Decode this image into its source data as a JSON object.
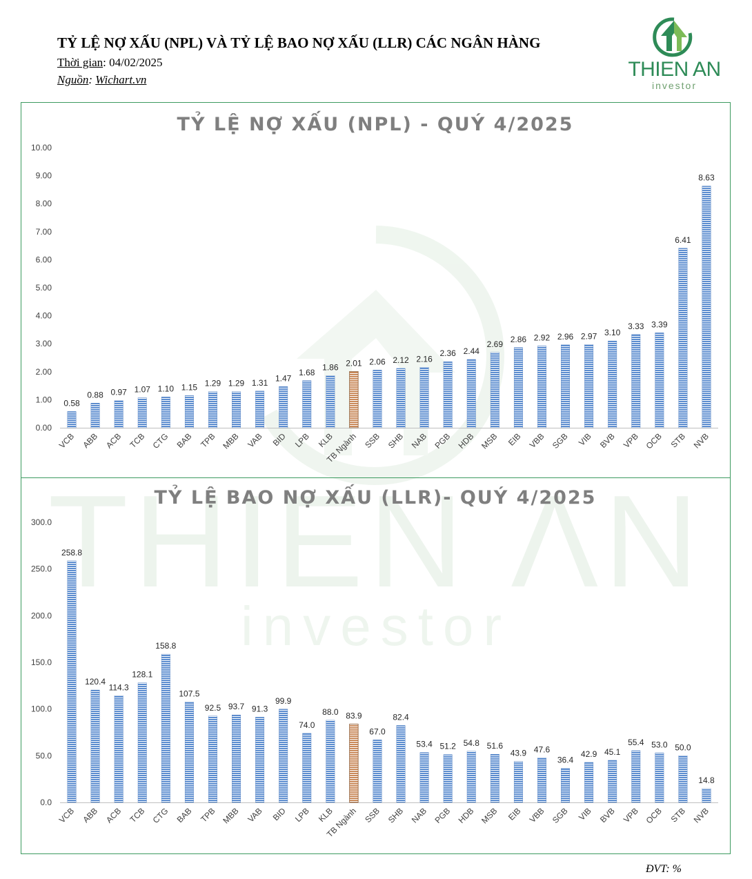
{
  "header": {
    "title": "TỶ LỆ NỢ XẤU (NPL) VÀ TỶ LỆ BAO NỢ XẤU (LLR) CÁC NGÂN HÀNG",
    "date_label": "Thời gian",
    "date_value": "04/02/2025",
    "source_label": "Nguồn",
    "source_value": "Wichart.vn"
  },
  "logo": {
    "name": "THIEN AN",
    "sub": "investor",
    "icon": "upward-arrow-circle-icon",
    "color": "#2e8b57"
  },
  "footer": {
    "unit": "ĐVT: %"
  },
  "colors": {
    "bar": "#5b8ccf",
    "highlight": "#c9895a",
    "border": "#3c9a5f",
    "watermark": "#e6f0e6"
  },
  "chart_data": [
    {
      "type": "bar",
      "title": "TỶ LỆ NỢ XẤU (NPL) - QUÝ 4/2025",
      "categories": [
        "VCB",
        "ABB",
        "ACB",
        "TCB",
        "CTG",
        "BAB",
        "TPB",
        "MBB",
        "VAB",
        "BID",
        "LPB",
        "KLB",
        "TB Ngành",
        "SSB",
        "SHB",
        "NAB",
        "PGB",
        "HDB",
        "MSB",
        "EIB",
        "VBB",
        "SGB",
        "VIB",
        "BVB",
        "VPB",
        "OCB",
        "STB",
        "NVB"
      ],
      "values": [
        0.58,
        0.88,
        0.97,
        1.07,
        1.1,
        1.15,
        1.29,
        1.29,
        1.31,
        1.47,
        1.68,
        1.86,
        2.01,
        2.06,
        2.12,
        2.16,
        2.36,
        2.44,
        2.69,
        2.86,
        2.92,
        2.96,
        2.97,
        3.1,
        3.33,
        3.39,
        6.41,
        8.63
      ],
      "labels": [
        "0.58",
        "0.88",
        "0.97",
        "1.07",
        "1.10",
        "1.15",
        "1.29",
        "1.29",
        "1.31",
        "1.47",
        "1.68",
        "1.86",
        "2.01",
        "2.06",
        "2.12",
        "2.16",
        "2.36",
        "2.44",
        "2.69",
        "2.86",
        "2.92",
        "2.96",
        "2.97",
        "3.10",
        "3.33",
        "3.39",
        "6.41",
        "8.63"
      ],
      "highlight": "TB Ngành",
      "ylim": [
        0,
        10
      ],
      "yticks": [
        "0.00",
        "1.00",
        "2.00",
        "3.00",
        "4.00",
        "5.00",
        "6.00",
        "7.00",
        "8.00",
        "9.00",
        "10.00"
      ],
      "grid": false
    },
    {
      "type": "bar",
      "title": "TỶ LỆ BAO NỢ XẤU (LLR)- QUÝ 4/2025",
      "categories": [
        "VCB",
        "ABB",
        "ACB",
        "TCB",
        "CTG",
        "BAB",
        "TPB",
        "MBB",
        "VAB",
        "BID",
        "LPB",
        "KLB",
        "TB Ngành",
        "SSB",
        "SHB",
        "NAB",
        "PGB",
        "HDB",
        "MSB",
        "EIB",
        "VBB",
        "SGB",
        "VIB",
        "BVB",
        "VPB",
        "OCB",
        "STB",
        "NVB"
      ],
      "values": [
        258.8,
        120.4,
        114.3,
        128.1,
        158.8,
        107.5,
        92.5,
        93.7,
        91.3,
        99.9,
        74.0,
        88.0,
        83.9,
        67.0,
        82.4,
        53.4,
        51.2,
        54.8,
        51.6,
        43.9,
        47.6,
        36.4,
        42.9,
        45.1,
        55.4,
        53.0,
        50.0,
        14.8
      ],
      "labels": [
        "258.8",
        "120.4",
        "114.3",
        "128.1",
        "158.8",
        "107.5",
        "92.5",
        "93.7",
        "91.3",
        "99.9",
        "74.0",
        "88.0",
        "83.9",
        "67.0",
        "82.4",
        "53.4",
        "51.2",
        "54.8",
        "51.6",
        "43.9",
        "47.6",
        "36.4",
        "42.9",
        "45.1",
        "55.4",
        "53.0",
        "50.0",
        "14.8"
      ],
      "highlight": "TB Ngành",
      "ylim": [
        0,
        300
      ],
      "yticks": [
        "0.0",
        "50.0",
        "100.0",
        "150.0",
        "200.0",
        "250.0",
        "300.0"
      ],
      "grid": false
    }
  ]
}
